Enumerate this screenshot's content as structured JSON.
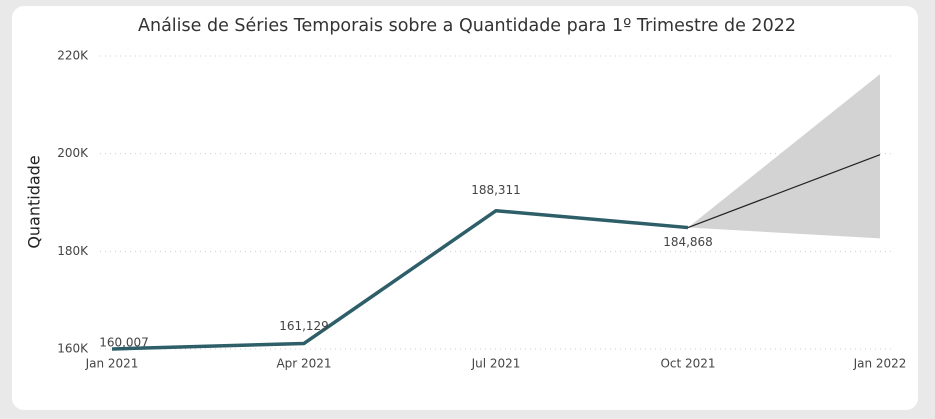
{
  "chart_data": {
    "type": "line",
    "title": "Análise de Séries Temporais sobre a Quantidade para 1º Trimestre de 2022",
    "ylabel": "Quantidade",
    "categories": [
      "Jan 2021",
      "Apr 2021",
      "Jul 2021",
      "Oct 2021",
      "Jan 2022"
    ],
    "series": [
      {
        "color": "#2e5f69",
        "values": [
          160007,
          161129,
          188311,
          184868,
          null
        ],
        "value_labels": [
          "160,007",
          "161,129",
          "188,311",
          "184,868",
          null
        ]
      },
      {
        "color": "#222222",
        "values": [
          null,
          null,
          null,
          184868,
          199800
        ]
      }
    ],
    "band": {
      "color": "#d3d3d3",
      "upper": [
        null,
        null,
        null,
        184868,
        216300
      ],
      "lower": [
        null,
        null,
        null,
        184868,
        182650
      ]
    },
    "ylim": [
      160000,
      220000
    ],
    "yticks": [
      {
        "value": 160000,
        "label": "160K"
      },
      {
        "value": 180000,
        "label": "180K"
      },
      {
        "value": 200000,
        "label": "200K"
      },
      {
        "value": 220000,
        "label": "220K"
      }
    ],
    "grid": true
  }
}
